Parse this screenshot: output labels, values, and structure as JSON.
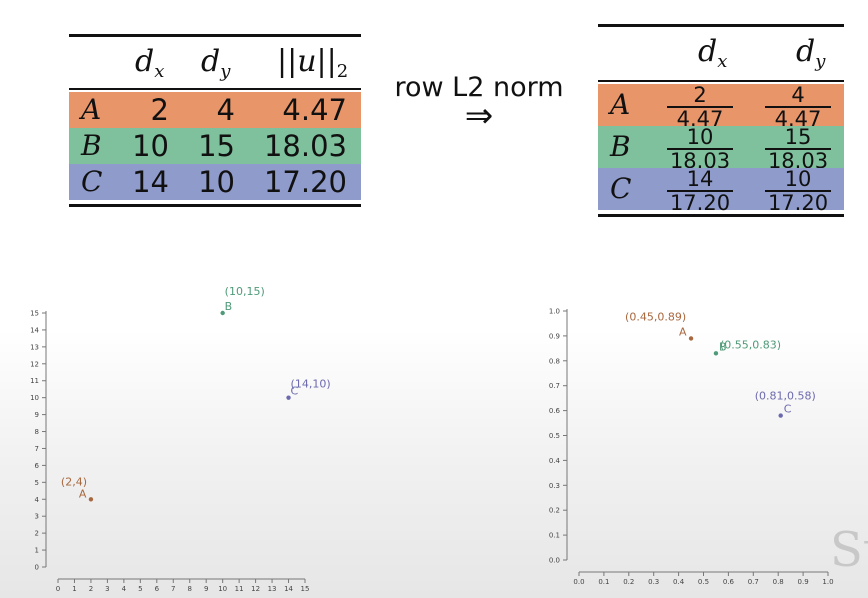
{
  "left_table": {
    "headers": [
      "d_x",
      "d_y",
      "||u||_2"
    ],
    "rows": [
      {
        "label": "A",
        "values": [
          "2",
          "4",
          "4.47"
        ],
        "color": "#e8956a"
      },
      {
        "label": "B",
        "values": [
          "10",
          "15",
          "18.03"
        ],
        "color": "#7fc09d"
      },
      {
        "label": "C",
        "values": [
          "14",
          "10",
          "17.20"
        ],
        "color": "#8f9bcb"
      }
    ]
  },
  "operation": {
    "label": "row L2 norm",
    "arrow": "⇒"
  },
  "right_table": {
    "headers": [
      "d_x",
      "d_y"
    ],
    "rows": [
      {
        "label": "A",
        "dx": {
          "num": "2",
          "den": "4.47"
        },
        "dy": {
          "num": "4",
          "den": "4.47"
        },
        "color": "#e8956a"
      },
      {
        "label": "B",
        "dx": {
          "num": "10",
          "den": "18.03"
        },
        "dy": {
          "num": "15",
          "den": "18.03"
        },
        "color": "#7fc09d"
      },
      {
        "label": "C",
        "dx": {
          "num": "14",
          "den": "17.20"
        },
        "dy": {
          "num": "10",
          "den": "17.20"
        },
        "color": "#8f9bcb"
      }
    ]
  },
  "chart_data": [
    {
      "type": "scatter",
      "xlim": [
        0,
        15
      ],
      "ylim": [
        0,
        15
      ],
      "xticks": [
        "0",
        "1",
        "2",
        "3",
        "4",
        "5",
        "6",
        "7",
        "8",
        "9",
        "10",
        "11",
        "12",
        "13",
        "14",
        "15"
      ],
      "yticks": [
        "0",
        "1",
        "2",
        "3",
        "4",
        "5",
        "6",
        "7",
        "8",
        "9",
        "10",
        "11",
        "12",
        "13",
        "14",
        "15"
      ],
      "points": [
        {
          "name": "A",
          "x": 2,
          "y": 4,
          "label": "(2,4)",
          "color": "#a8683f"
        },
        {
          "name": "B",
          "x": 10,
          "y": 15,
          "label": "(10,15)",
          "color": "#4f9a78"
        },
        {
          "name": "C",
          "x": 14,
          "y": 10,
          "label": "(14,10)",
          "color": "#6c6aae"
        }
      ]
    },
    {
      "type": "scatter",
      "xlim": [
        0,
        1
      ],
      "ylim": [
        0,
        1
      ],
      "xticks": [
        "0.0",
        "0.1",
        "0.2",
        "0.3",
        "0.4",
        "0.5",
        "0.6",
        "0.7",
        "0.8",
        "0.9",
        "1.0"
      ],
      "yticks": [
        "0.0",
        "0.1",
        "0.2",
        "0.3",
        "0.4",
        "0.5",
        "0.6",
        "0.7",
        "0.8",
        "0.9",
        "1.0"
      ],
      "points": [
        {
          "name": "A",
          "x": 0.45,
          "y": 0.89,
          "label": "(0.45,0.89)",
          "color": "#a8683f"
        },
        {
          "name": "B",
          "x": 0.55,
          "y": 0.83,
          "label": "(0.55,0.83)",
          "color": "#4f9a78"
        },
        {
          "name": "C",
          "x": 0.81,
          "y": 0.58,
          "label": "(0.81,0.58)",
          "color": "#6c6aae"
        }
      ]
    }
  ],
  "watermark": "St"
}
